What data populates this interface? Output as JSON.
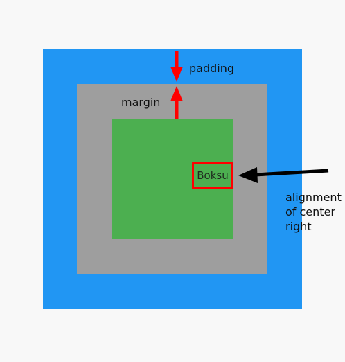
{
  "colors": {
    "background": "#f8f8f8",
    "outer": "#2196f3",
    "middle": "#9e9e9e",
    "inner": "#4caf50",
    "highlight": "#ff0000",
    "red_arrow": "#ff0000",
    "black_arrow": "#000000"
  },
  "labels": {
    "padding": "padding",
    "margin": "margin",
    "box": "Boksu",
    "annotation_lines": [
      "alignment",
      "of center",
      "right"
    ]
  }
}
